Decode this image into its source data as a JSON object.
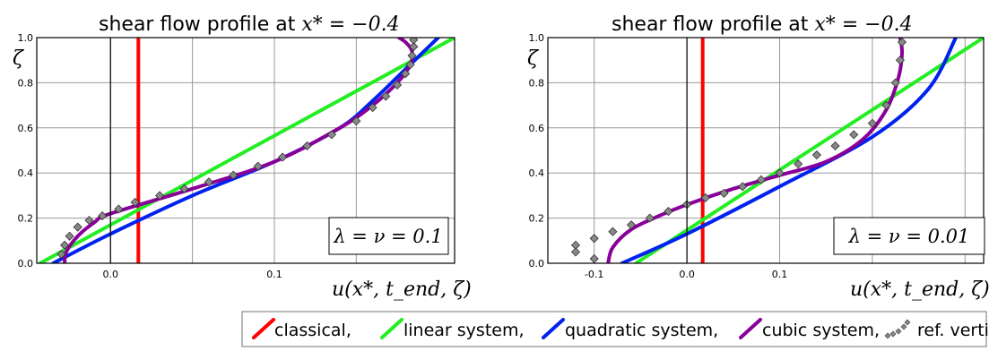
{
  "figure": {
    "legend": {
      "entries": [
        {
          "label": "classical,",
          "color": "#ff0000",
          "marker": "line"
        },
        {
          "label": "linear system,",
          "color": "#22ee22",
          "marker": "line"
        },
        {
          "label": "quadratic system,",
          "color": "#0022ee",
          "marker": "line"
        },
        {
          "label": "cubic system,",
          "color": "#880099",
          "marker": "line"
        },
        {
          "label": "ref. vertically resolved",
          "color": "#888888",
          "marker": "diamonds"
        }
      ]
    }
  },
  "chart_data": [
    {
      "type": "line",
      "title_text": "shear flow profile at ",
      "title_math": "x* = −0.4",
      "xlabel": "u(x*, t_end, ζ)",
      "ylabel": "ζ",
      "xlim": [
        -0.045,
        0.21
      ],
      "ylim": [
        0.0,
        1.0
      ],
      "xticks": [
        0.0,
        0.1
      ],
      "xtick_labels": [
        "0.0",
        "0.1"
      ],
      "grid_x": [
        0.0,
        0.05,
        0.1,
        0.15
      ],
      "yticks": [
        0.0,
        0.2,
        0.4,
        0.6,
        0.8,
        1.0
      ],
      "ytick_labels": [
        "0.0",
        "0.2",
        "0.4",
        "0.6",
        "0.8",
        "1.0"
      ],
      "grid": true,
      "annotation": "λ = ν = 0.1",
      "series": [
        {
          "name": "classical,",
          "color": "#ff0000",
          "x": [
            0.017,
            0.017
          ],
          "y": [
            0.0,
            1.0
          ]
        },
        {
          "name": "linear system,",
          "color": "#22ee22",
          "x": [
            -0.043,
            0.21
          ],
          "y": [
            0.0,
            1.0
          ]
        },
        {
          "name": "quadratic system,",
          "color": "#0022ee",
          "x": [
            -0.035,
            0.0,
            0.05,
            0.1,
            0.14,
            0.16,
            0.18,
            0.2
          ],
          "y": [
            0.0,
            0.13,
            0.3,
            0.45,
            0.6,
            0.72,
            0.86,
            1.0
          ]
        },
        {
          "name": "cubic system,",
          "color": "#880099",
          "x": [
            -0.028,
            -0.027,
            -0.02,
            -0.01,
            0.0,
            0.05,
            0.1,
            0.14,
            0.16,
            0.175,
            0.183,
            0.184,
            0.18,
            0.176
          ],
          "y": [
            0.0,
            0.05,
            0.12,
            0.18,
            0.22,
            0.33,
            0.45,
            0.6,
            0.7,
            0.8,
            0.88,
            0.94,
            0.98,
            1.0
          ]
        },
        {
          "name": "ref. vertically resolved",
          "color": "#888888",
          "marker": "diamond",
          "x": [
            -0.03,
            -0.028,
            -0.025,
            -0.02,
            -0.013,
            -0.005,
            0.005,
            0.015,
            0.03,
            0.045,
            0.06,
            0.075,
            0.09,
            0.105,
            0.12,
            0.135,
            0.15,
            0.16,
            0.168,
            0.175,
            0.18,
            0.183,
            0.184,
            0.185,
            0.185
          ],
          "y": [
            0.04,
            0.08,
            0.12,
            0.16,
            0.19,
            0.21,
            0.24,
            0.27,
            0.3,
            0.33,
            0.36,
            0.39,
            0.43,
            0.47,
            0.52,
            0.57,
            0.63,
            0.69,
            0.74,
            0.79,
            0.84,
            0.88,
            0.92,
            0.96,
            0.99
          ]
        }
      ]
    },
    {
      "type": "line",
      "title_text": "shear flow profile at ",
      "title_math": "x* = −0.4",
      "xlabel": "u(x*, t_end, ζ)",
      "ylabel": "ζ",
      "xlim": [
        -0.15,
        0.32
      ],
      "ylim": [
        0.0,
        1.0
      ],
      "xticks": [
        -0.1,
        0.0,
        0.1
      ],
      "xtick_labels": [
        "-0.1",
        "0.0",
        "0.1"
      ],
      "grid_x": [
        -0.1,
        0.0,
        0.1,
        0.2,
        0.3
      ],
      "yticks": [
        0.0,
        0.2,
        0.4,
        0.6,
        0.8,
        1.0
      ],
      "ytick_labels": [
        "0.0",
        "0.2",
        "0.4",
        "0.6",
        "0.8",
        "1.0"
      ],
      "grid": true,
      "annotation": "λ = ν = 0.01",
      "series": [
        {
          "name": "classical,",
          "color": "#ff0000",
          "x": [
            0.017,
            0.017
          ],
          "y": [
            0.0,
            1.0
          ]
        },
        {
          "name": "linear system,",
          "color": "#22ee22",
          "x": [
            -0.055,
            0.32
          ],
          "y": [
            0.0,
            1.0
          ]
        },
        {
          "name": "quadratic system,",
          "color": "#0022ee",
          "x": [
            -0.07,
            0.0,
            0.1,
            0.2,
            0.26,
            0.29
          ],
          "y": [
            0.0,
            0.13,
            0.34,
            0.56,
            0.77,
            1.0
          ]
        },
        {
          "name": "cubic system,",
          "color": "#880099",
          "x": [
            -0.085,
            -0.08,
            -0.06,
            -0.03,
            0.0,
            0.05,
            0.1,
            0.15,
            0.19,
            0.215,
            0.228,
            0.232,
            0.23
          ],
          "y": [
            0.0,
            0.07,
            0.15,
            0.21,
            0.26,
            0.33,
            0.39,
            0.45,
            0.55,
            0.68,
            0.82,
            0.93,
            1.0
          ]
        },
        {
          "name": "ref. vertically resolved",
          "color": "#888888",
          "marker": "diamond",
          "x": [
            -0.12,
            -0.1,
            -0.08,
            -0.06,
            -0.04,
            -0.02,
            0.0,
            0.02,
            0.04,
            0.06,
            0.08,
            0.1,
            0.12,
            0.14,
            0.16,
            0.18,
            0.2,
            0.215,
            0.225,
            0.23,
            0.232,
            -0.12,
            -0.1
          ],
          "y": [
            0.08,
            0.11,
            0.14,
            0.17,
            0.2,
            0.23,
            0.26,
            0.29,
            0.31,
            0.34,
            0.37,
            0.4,
            0.44,
            0.48,
            0.52,
            0.57,
            0.62,
            0.7,
            0.8,
            0.9,
            0.98,
            0.05,
            0.02
          ]
        }
      ]
    }
  ]
}
